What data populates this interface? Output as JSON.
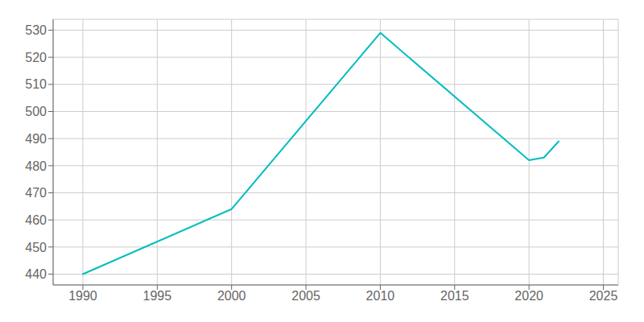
{
  "chart_data": {
    "type": "line",
    "x": [
      1990,
      2000,
      2010,
      2020,
      2021,
      2022
    ],
    "values": [
      440,
      464,
      529,
      482,
      483,
      489
    ],
    "color": "#00BDBF",
    "xlim": [
      1988,
      2026
    ],
    "ylim": [
      436,
      534
    ],
    "xticks": [
      1990,
      1995,
      2000,
      2005,
      2010,
      2015,
      2020,
      2025
    ],
    "yticks": [
      440,
      450,
      460,
      470,
      480,
      490,
      500,
      510,
      520,
      530
    ],
    "grid": true
  }
}
